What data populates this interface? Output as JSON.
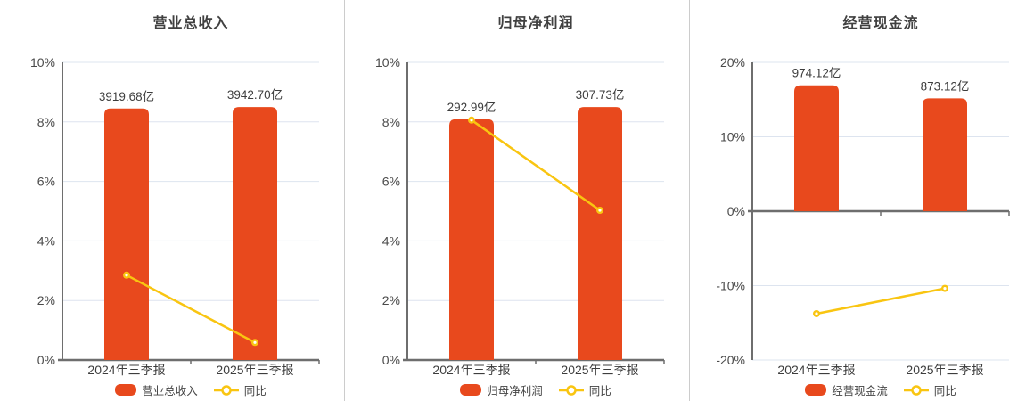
{
  "colors": {
    "bar": "#e8491d",
    "line": "#f9c511",
    "axis": "#6e6e6e",
    "grid": "#dde4ef",
    "title_text": "#404040",
    "label_text": "#3d3d3d",
    "separator": "#cccccc"
  },
  "chart_data": [
    {
      "type": "bar",
      "title": "营业总收入",
      "categories": [
        "2024年三季报",
        "2025年三季报"
      ],
      "ylim": [
        0,
        10
      ],
      "yticks": [
        0,
        2,
        4,
        6,
        8,
        10
      ],
      "ytick_labels": [
        "0%",
        "2%",
        "4%",
        "6%",
        "8%",
        "10%"
      ],
      "grid": true,
      "legend_position": "bottom",
      "bar_series": {
        "name": "营业总收入",
        "value_labels": [
          "3919.68亿",
          "3942.70亿"
        ],
        "plotted_axis_values": [
          8.45,
          8.5
        ]
      },
      "line_series": {
        "name": "同比",
        "values_pct": [
          2.85,
          0.59
        ]
      }
    },
    {
      "type": "bar",
      "title": "归母净利润",
      "categories": [
        "2024年三季报",
        "2025年三季报"
      ],
      "ylim": [
        0,
        10
      ],
      "yticks": [
        0,
        2,
        4,
        6,
        8,
        10
      ],
      "ytick_labels": [
        "0%",
        "2%",
        "4%",
        "6%",
        "8%",
        "10%"
      ],
      "grid": true,
      "legend_position": "bottom",
      "bar_series": {
        "name": "归母净利润",
        "value_labels": [
          "292.99亿",
          "307.73亿"
        ],
        "plotted_axis_values": [
          8.09,
          8.5
        ]
      },
      "line_series": {
        "name": "同比",
        "values_pct": [
          8.06,
          5.03
        ]
      }
    },
    {
      "type": "bar",
      "title": "经营现金流",
      "categories": [
        "2024年三季报",
        "2025年三季报"
      ],
      "ylim": [
        -20,
        20
      ],
      "yticks": [
        -20,
        -10,
        0,
        10,
        20
      ],
      "ytick_labels": [
        "-20%",
        "-10%",
        "0%",
        "10%",
        "20%"
      ],
      "grid": true,
      "legend_position": "bottom",
      "bar_series": {
        "name": "经营现金流",
        "value_labels": [
          "974.12亿",
          "873.12亿"
        ],
        "plotted_axis_values": [
          16.92,
          15.16
        ]
      },
      "line_series": {
        "name": "同比",
        "values_pct": [
          -13.77,
          -10.37
        ]
      }
    }
  ]
}
